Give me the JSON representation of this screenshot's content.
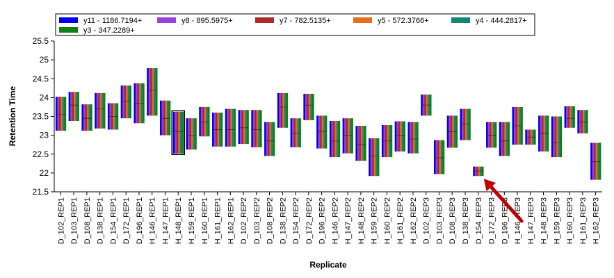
{
  "chart_data": {
    "type": "box",
    "xlabel": "Replicate",
    "ylabel": "Retention Time",
    "ylim": [
      21.5,
      25.5
    ],
    "yticks": [
      21.5,
      22,
      22.5,
      23,
      23.5,
      24,
      24.5,
      25,
      25.5
    ],
    "legend_placement": "top",
    "series": [
      {
        "name": "y11 - 1186.7194+",
        "color": "#0000ee"
      },
      {
        "name": "y8 - 895.5975+",
        "color": "#9b3fe0"
      },
      {
        "name": "y7 - 782.5135+",
        "color": "#b02828"
      },
      {
        "name": "y5 - 572.3766+",
        "color": "#e07020"
      },
      {
        "name": "y4 - 444.2817+",
        "color": "#108878"
      },
      {
        "name": "y3 - 347.2289+",
        "color": "#108010"
      }
    ],
    "categories": [
      "D_102_REP1",
      "D_103_REP1",
      "D_108_REP1",
      "D_138_REP1",
      "D_154_REP1",
      "D_172_REP1",
      "D_196_REP1",
      "H_146_REP1",
      "H_147_REP1",
      "H_148_REP1",
      "H_159_REP1",
      "H_160_REP1",
      "H_161_REP1",
      "H_162_REP1",
      "D_102_REP2",
      "D_103_REP2",
      "D_108_REP2",
      "D_138_REP2",
      "D_154_REP2",
      "D_172_REP2",
      "D_196_REP2",
      "H_146_REP2",
      "H_147_REP2",
      "H_148_REP2",
      "H_159_REP2",
      "H_160_REP2",
      "H_161_REP2",
      "H_162_REP2",
      "D_102_REP3",
      "D_103_REP3",
      "D_108_REP3",
      "D_138_REP3",
      "D_154_REP3",
      "D_172_REP3",
      "D_196_REP3",
      "H_146_REP3",
      "H_147_REP3",
      "H_148_REP3",
      "H_159_REP3",
      "H_160_REP3",
      "H_161_REP3",
      "H_162_REP3"
    ],
    "ranges": [
      [
        23.12,
        24.02
      ],
      [
        23.38,
        24.15
      ],
      [
        23.12,
        23.82
      ],
      [
        23.18,
        24.12
      ],
      [
        23.15,
        23.85
      ],
      [
        23.45,
        24.32
      ],
      [
        23.32,
        24.38
      ],
      [
        23.52,
        24.78
      ],
      [
        23.0,
        23.92
      ],
      [
        22.52,
        23.62
      ],
      [
        22.62,
        23.45
      ],
      [
        22.97,
        23.75
      ],
      [
        22.7,
        23.6
      ],
      [
        22.7,
        23.7
      ],
      [
        22.77,
        23.67
      ],
      [
        22.68,
        23.67
      ],
      [
        22.45,
        23.35
      ],
      [
        23.2,
        24.12
      ],
      [
        22.68,
        23.45
      ],
      [
        23.4,
        24.1
      ],
      [
        22.65,
        23.52
      ],
      [
        22.42,
        23.38
      ],
      [
        22.52,
        23.45
      ],
      [
        22.32,
        23.25
      ],
      [
        21.92,
        22.92
      ],
      [
        22.42,
        23.27
      ],
      [
        22.57,
        23.37
      ],
      [
        22.52,
        23.35
      ],
      [
        23.52,
        24.08
      ],
      [
        21.97,
        22.87
      ],
      [
        22.67,
        23.52
      ],
      [
        22.87,
        23.7
      ],
      [
        21.92,
        22.17
      ],
      [
        22.67,
        23.35
      ],
      [
        22.45,
        23.35
      ],
      [
        22.75,
        23.75
      ],
      [
        22.75,
        23.15
      ],
      [
        22.57,
        23.52
      ],
      [
        22.42,
        23.5
      ],
      [
        23.2,
        23.77
      ],
      [
        23.05,
        23.67
      ],
      [
        21.82,
        22.8
      ]
    ],
    "medians": [
      23.55,
      23.8,
      23.45,
      23.7,
      23.5,
      23.9,
      23.85,
      24.2,
      23.45,
      23.1,
      23.0,
      23.35,
      23.15,
      23.15,
      23.2,
      23.15,
      22.85,
      23.75,
      23.05,
      23.8,
      23.1,
      22.85,
      23.0,
      22.75,
      22.45,
      22.85,
      23.0,
      22.9,
      23.8,
      22.4,
      23.1,
      23.3,
      22.05,
      23.0,
      22.85,
      23.25,
      22.95,
      23.05,
      22.8,
      23.45,
      23.35,
      22.3
    ],
    "highlighted_category": "H_148_REP1",
    "annotation": {
      "type": "arrow",
      "color": "#c00000",
      "points_to": "D_154_REP3"
    }
  }
}
